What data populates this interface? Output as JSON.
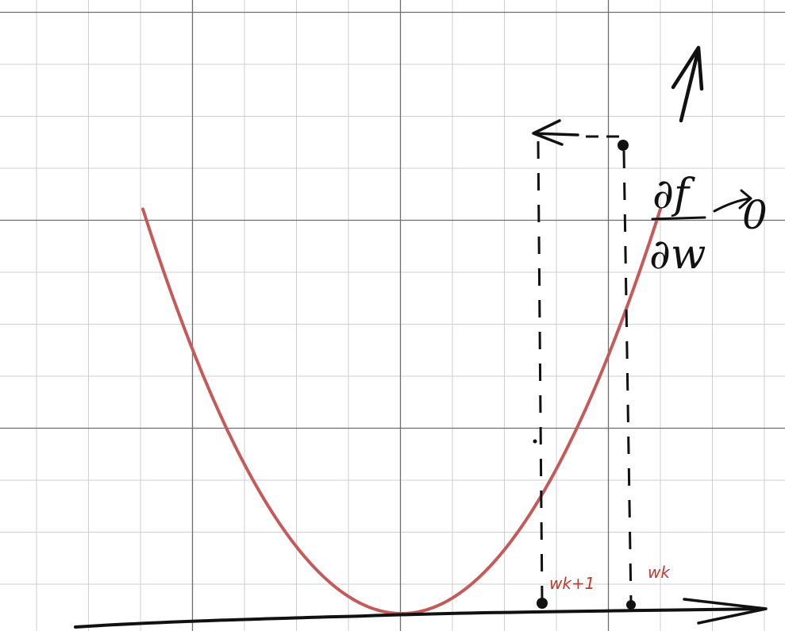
{
  "colors": {
    "grid_minor": "#cfcfcf",
    "grid_major": "#6e6e6e",
    "curve": "#c45a5a",
    "ink": "#111111",
    "label_red": "#c0392b",
    "background": "#ffffff"
  },
  "labels": {
    "w_next": "wk+1",
    "w_k": "wk",
    "derivative_numerator": "∂f",
    "derivative_denominator": "∂w",
    "tends_to_arrow": "→",
    "limit_value": "0"
  },
  "icons": {
    "up_arrow": "up-arrow-icon",
    "left_arrow": "left-arrow-icon",
    "axis_arrow": "axis-arrow-icon"
  }
}
